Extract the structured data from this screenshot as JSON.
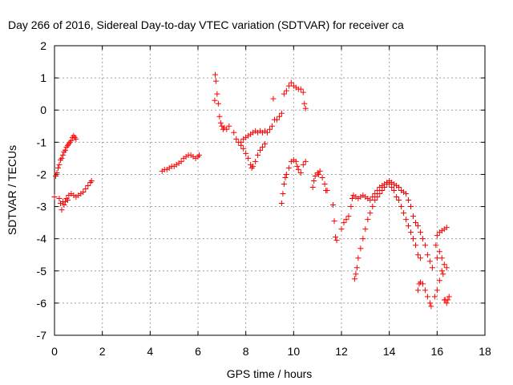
{
  "chart_data": {
    "type": "scatter",
    "title": "Day 266 of 2016, Sidereal Day-to-day VTEC variation (SDTVAR) for receiver ca",
    "xlabel": "GPS time / hours",
    "ylabel": "SDTVAR / TECUs",
    "xlim": [
      0,
      18
    ],
    "ylim": [
      -7,
      2
    ],
    "xticks": [
      0,
      2,
      4,
      6,
      8,
      10,
      12,
      14,
      16,
      18
    ],
    "yticks": [
      2,
      1,
      0,
      -1,
      -2,
      -3,
      -4,
      -5,
      -6,
      -7
    ],
    "grid": true,
    "marker": "plus",
    "color": "#ff0000",
    "series": [
      {
        "points": [
          [
            0.0,
            -2.7
          ],
          [
            0.05,
            -2.05
          ],
          [
            0.1,
            -1.95
          ],
          [
            0.15,
            -1.8
          ],
          [
            0.2,
            -2.75
          ],
          [
            0.25,
            -2.9
          ],
          [
            0.3,
            -3.1
          ],
          [
            0.35,
            -2.85
          ],
          [
            0.4,
            -2.95
          ],
          [
            0.45,
            -2.85
          ],
          [
            0.5,
            -2.75
          ],
          [
            0.55,
            -2.8
          ],
          [
            0.6,
            -2.65
          ],
          [
            0.7,
            -2.6
          ],
          [
            0.8,
            -2.65
          ],
          [
            0.9,
            -2.7
          ],
          [
            1.0,
            -2.65
          ],
          [
            1.1,
            -2.6
          ],
          [
            1.2,
            -2.55
          ],
          [
            1.3,
            -2.45
          ],
          [
            1.4,
            -2.35
          ],
          [
            1.5,
            -2.25
          ],
          [
            1.55,
            -2.2
          ],
          [
            0.2,
            -1.7
          ],
          [
            0.25,
            -1.55
          ],
          [
            0.3,
            -1.5
          ],
          [
            0.35,
            -1.4
          ],
          [
            0.4,
            -1.3
          ],
          [
            0.45,
            -1.25
          ],
          [
            0.5,
            -1.15
          ],
          [
            0.55,
            -1.1
          ],
          [
            0.6,
            -1.05
          ],
          [
            0.65,
            -1.0
          ],
          [
            0.7,
            -0.95
          ],
          [
            0.75,
            -0.85
          ],
          [
            0.8,
            -0.8
          ],
          [
            0.85,
            -0.85
          ],
          [
            0.9,
            -0.9
          ]
        ]
      },
      {
        "points": [
          [
            4.5,
            -1.9
          ],
          [
            4.6,
            -1.85
          ],
          [
            4.7,
            -1.85
          ],
          [
            4.8,
            -1.8
          ],
          [
            4.9,
            -1.75
          ],
          [
            5.0,
            -1.75
          ],
          [
            5.1,
            -1.7
          ],
          [
            5.2,
            -1.65
          ],
          [
            5.3,
            -1.6
          ],
          [
            5.4,
            -1.5
          ],
          [
            5.5,
            -1.45
          ],
          [
            5.6,
            -1.4
          ],
          [
            5.7,
            -1.4
          ],
          [
            5.8,
            -1.45
          ],
          [
            5.9,
            -1.5
          ],
          [
            6.0,
            -1.45
          ],
          [
            6.05,
            -1.4
          ]
        ]
      },
      {
        "points": [
          [
            6.7,
            0.3
          ],
          [
            6.72,
            1.1
          ],
          [
            6.75,
            0.9
          ],
          [
            6.8,
            0.5
          ],
          [
            6.85,
            0.2
          ],
          [
            6.9,
            -0.2
          ],
          [
            6.95,
            -0.4
          ],
          [
            7.0,
            -0.5
          ],
          [
            7.05,
            -0.6
          ],
          [
            7.1,
            -0.55
          ],
          [
            7.2,
            -0.6
          ],
          [
            7.3,
            -0.5
          ],
          [
            7.5,
            -0.7
          ],
          [
            7.6,
            -0.9
          ],
          [
            7.7,
            -1.0
          ],
          [
            7.8,
            -1.0
          ],
          [
            7.9,
            -0.9
          ],
          [
            8.0,
            -0.85
          ],
          [
            8.1,
            -0.8
          ],
          [
            8.2,
            -0.75
          ],
          [
            8.3,
            -0.7
          ],
          [
            8.4,
            -0.65
          ],
          [
            8.5,
            -0.7
          ],
          [
            8.6,
            -0.65
          ],
          [
            8.7,
            -0.7
          ],
          [
            8.8,
            -0.65
          ],
          [
            8.9,
            -0.7
          ],
          [
            9.0,
            -0.6
          ],
          [
            9.1,
            -0.5
          ],
          [
            9.15,
            0.35
          ],
          [
            9.2,
            -0.3
          ],
          [
            9.3,
            -0.3
          ],
          [
            9.4,
            -0.2
          ],
          [
            9.5,
            -0.1
          ],
          [
            9.6,
            0.5
          ],
          [
            9.7,
            0.6
          ],
          [
            9.8,
            0.75
          ],
          [
            9.9,
            0.85
          ],
          [
            10.0,
            0.75
          ],
          [
            10.1,
            0.7
          ],
          [
            10.2,
            0.65
          ],
          [
            10.3,
            0.65
          ],
          [
            10.4,
            0.55
          ],
          [
            10.45,
            0.2
          ],
          [
            10.5,
            0.05
          ],
          [
            7.8,
            -1.1
          ],
          [
            7.9,
            -1.2
          ],
          [
            8.0,
            -1.35
          ],
          [
            8.1,
            -1.5
          ],
          [
            8.2,
            -1.7
          ],
          [
            8.25,
            -1.8
          ],
          [
            8.3,
            -1.75
          ],
          [
            8.4,
            -1.6
          ],
          [
            8.5,
            -1.4
          ],
          [
            8.6,
            -1.25
          ],
          [
            8.7,
            -1.15
          ],
          [
            8.8,
            -1.05
          ],
          [
            9.5,
            -2.9
          ],
          [
            9.55,
            -2.6
          ],
          [
            9.6,
            -2.3
          ],
          [
            9.65,
            -2.1
          ],
          [
            9.7,
            -2.0
          ],
          [
            9.8,
            -1.8
          ],
          [
            9.9,
            -1.6
          ],
          [
            10.0,
            -1.55
          ],
          [
            10.1,
            -1.6
          ],
          [
            10.15,
            -1.75
          ],
          [
            10.2,
            -1.85
          ],
          [
            10.3,
            -1.95
          ],
          [
            10.4,
            -1.7
          ],
          [
            10.5,
            -1.6
          ]
        ]
      },
      {
        "points": [
          [
            10.8,
            -2.4
          ],
          [
            10.85,
            -2.2
          ],
          [
            10.9,
            -2.05
          ],
          [
            11.0,
            -1.95
          ],
          [
            11.05,
            -2.0
          ],
          [
            11.1,
            -1.9
          ],
          [
            11.2,
            -2.1
          ],
          [
            11.3,
            -2.3
          ],
          [
            11.35,
            -2.5
          ],
          [
            11.4,
            -2.5
          ],
          [
            11.65,
            -2.95
          ],
          [
            11.7,
            -3.45
          ],
          [
            11.75,
            -3.95
          ],
          [
            11.8,
            -4.05
          ],
          [
            12.0,
            -3.7
          ],
          [
            12.1,
            -3.5
          ],
          [
            12.2,
            -3.4
          ],
          [
            12.3,
            -3.3
          ],
          [
            12.4,
            -3.0
          ],
          [
            12.45,
            -2.75
          ],
          [
            12.5,
            -2.65
          ],
          [
            12.6,
            -2.7
          ],
          [
            12.7,
            -2.75
          ],
          [
            12.8,
            -2.7
          ],
          [
            12.9,
            -2.65
          ],
          [
            13.0,
            -2.7
          ],
          [
            13.1,
            -2.75
          ],
          [
            13.2,
            -2.8
          ],
          [
            13.3,
            -2.7
          ],
          [
            13.4,
            -2.6
          ],
          [
            13.5,
            -2.5
          ],
          [
            13.6,
            -2.4
          ],
          [
            13.7,
            -2.35
          ],
          [
            13.8,
            -2.3
          ],
          [
            13.9,
            -2.25
          ],
          [
            14.0,
            -2.2
          ],
          [
            14.1,
            -2.25
          ],
          [
            14.2,
            -2.3
          ],
          [
            14.3,
            -2.35
          ],
          [
            14.4,
            -2.4
          ],
          [
            14.5,
            -2.5
          ],
          [
            14.6,
            -2.55
          ],
          [
            14.7,
            -2.6
          ],
          [
            14.8,
            -2.8
          ],
          [
            14.9,
            -3.0
          ],
          [
            15.0,
            -3.3
          ],
          [
            15.1,
            -3.5
          ],
          [
            15.2,
            -3.6
          ],
          [
            15.3,
            -3.8
          ],
          [
            15.4,
            -4.0
          ],
          [
            15.5,
            -4.2
          ],
          [
            15.6,
            -4.5
          ],
          [
            15.7,
            -4.7
          ],
          [
            15.8,
            -4.9
          ],
          [
            12.55,
            -5.25
          ],
          [
            12.6,
            -5.1
          ],
          [
            12.65,
            -4.9
          ],
          [
            12.7,
            -4.6
          ],
          [
            12.8,
            -4.3
          ],
          [
            12.9,
            -4.0
          ],
          [
            13.0,
            -3.7
          ],
          [
            13.1,
            -3.4
          ],
          [
            13.2,
            -3.2
          ],
          [
            13.3,
            -3.0
          ],
          [
            13.4,
            -2.8
          ],
          [
            13.5,
            -2.7
          ],
          [
            13.6,
            -2.6
          ],
          [
            13.7,
            -2.5
          ],
          [
            13.8,
            -2.4
          ],
          [
            13.9,
            -2.3
          ],
          [
            14.0,
            -2.3
          ],
          [
            14.1,
            -2.4
          ],
          [
            14.2,
            -2.5
          ],
          [
            14.3,
            -2.7
          ],
          [
            14.4,
            -2.8
          ],
          [
            14.5,
            -3.0
          ],
          [
            14.6,
            -3.2
          ],
          [
            14.7,
            -3.4
          ],
          [
            14.8,
            -3.6
          ],
          [
            14.9,
            -3.8
          ],
          [
            15.0,
            -4.0
          ],
          [
            15.1,
            -4.2
          ],
          [
            15.2,
            -4.5
          ],
          [
            15.3,
            -4.6
          ],
          [
            15.2,
            -5.6
          ],
          [
            15.25,
            -5.4
          ],
          [
            15.3,
            -5.35
          ],
          [
            15.4,
            -5.4
          ],
          [
            15.5,
            -5.6
          ],
          [
            15.6,
            -5.8
          ],
          [
            15.7,
            -6.0
          ],
          [
            15.75,
            -6.1
          ],
          [
            15.9,
            -5.8
          ],
          [
            16.0,
            -5.6
          ],
          [
            16.1,
            -5.3
          ],
          [
            16.2,
            -5.0
          ],
          [
            16.25,
            -5.1
          ],
          [
            16.3,
            -5.9
          ],
          [
            16.35,
            -5.9
          ],
          [
            16.4,
            -6.0
          ],
          [
            16.45,
            -5.9
          ],
          [
            16.5,
            -5.8
          ],
          [
            16.0,
            -4.6
          ],
          [
            16.1,
            -4.4
          ],
          [
            16.2,
            -4.6
          ],
          [
            16.3,
            -4.8
          ],
          [
            16.4,
            -4.9
          ],
          [
            15.95,
            -4.2
          ],
          [
            16.0,
            -3.9
          ],
          [
            16.1,
            -3.8
          ],
          [
            16.2,
            -3.75
          ],
          [
            16.3,
            -3.7
          ],
          [
            16.4,
            -3.65
          ]
        ]
      }
    ]
  }
}
